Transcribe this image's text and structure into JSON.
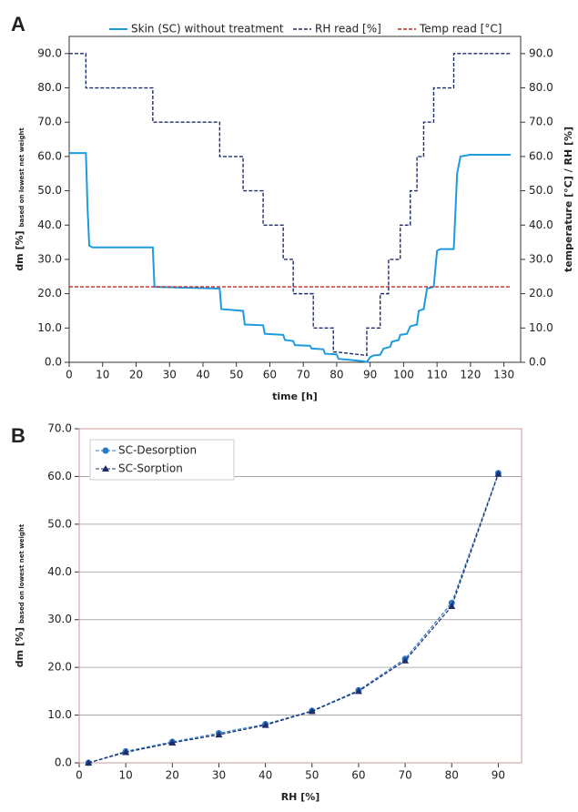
{
  "chart_data": [
    {
      "type": "line",
      "panel": "A",
      "x_label": "time [h]",
      "y_label": "dm [%]",
      "y_label_sub": "based on lowest net weight",
      "y2_label": "temperature [°C] / RH [%]",
      "xlim": [
        0,
        135
      ],
      "xticks": [
        0,
        10,
        20,
        30,
        40,
        50,
        60,
        70,
        80,
        90,
        100,
        110,
        120,
        130
      ],
      "ylim": [
        0,
        95
      ],
      "yticks": [
        {
          "value": 0,
          "label": "0.0"
        },
        {
          "value": 10,
          "label": "10.0"
        },
        {
          "value": 20,
          "label": "20.0"
        },
        {
          "value": 30,
          "label": "30.0"
        },
        {
          "value": 40,
          "label": "40.0"
        },
        {
          "value": 50,
          "label": "50.0"
        },
        {
          "value": 60,
          "label": "60.0"
        },
        {
          "value": 70,
          "label": "70.0"
        },
        {
          "value": 80,
          "label": "80.0"
        },
        {
          "value": 90,
          "label": "90.0"
        }
      ],
      "y2lim": [
        0,
        95
      ],
      "y2ticks": [
        {
          "value": 0,
          "label": "0.0"
        },
        {
          "value": 10,
          "label": "10.0"
        },
        {
          "value": 20,
          "label": "20.0"
        },
        {
          "value": 30,
          "label": "30.0"
        },
        {
          "value": 40,
          "label": "40.0"
        },
        {
          "value": 50,
          "label": "50.0"
        },
        {
          "value": 60,
          "label": "60.0"
        },
        {
          "value": 70,
          "label": "70.0"
        },
        {
          "value": 80,
          "label": "80.0"
        },
        {
          "value": 90,
          "label": "90.0"
        }
      ],
      "grid": false,
      "legend": "top",
      "series": [
        {
          "name": "Skin (SC) without treatment",
          "color": "#1e9be0",
          "dash": false,
          "width": 2,
          "x": [
            0,
            5,
            5.5,
            6,
            7,
            25,
            25.5,
            45,
            45.5,
            52,
            52.5,
            58,
            58.5,
            64,
            64.5,
            67,
            67.5,
            72,
            72.5,
            76,
            76.5,
            80,
            80.5,
            84,
            88,
            89,
            90,
            91,
            93,
            94,
            96,
            96.5,
            98.5,
            99,
            101,
            102,
            104,
            104.5,
            106,
            107,
            109,
            110,
            111,
            115,
            116,
            117,
            120,
            132
          ],
          "values": [
            61,
            61,
            45,
            34,
            33.5,
            33.5,
            22,
            21.5,
            15.5,
            15,
            11,
            10.8,
            8.3,
            8,
            6.5,
            6.2,
            5,
            4.8,
            4,
            3.8,
            2.5,
            2.3,
            1,
            0.7,
            0.3,
            0.1,
            1.5,
            2,
            2.2,
            4,
            4.5,
            6,
            6.5,
            8,
            8.3,
            10.5,
            11,
            15,
            15.5,
            21.5,
            22,
            32.5,
            33,
            33,
            55,
            60,
            60.5,
            60.5
          ]
        },
        {
          "name": "RH read [%]",
          "color": "#1f2d6b",
          "dash": true,
          "width": 1.4,
          "axis": "y2",
          "x": [
            0,
            5,
            5,
            25,
            25,
            45,
            45,
            52,
            52,
            58,
            58,
            64,
            64,
            67,
            67,
            73,
            73,
            79,
            79,
            80,
            89,
            89,
            93,
            93,
            95.5,
            95.5,
            99,
            99,
            102,
            102,
            104,
            104,
            106,
            106,
            109,
            109,
            115,
            115,
            132
          ],
          "values": [
            90,
            90,
            80,
            80,
            70,
            70,
            60,
            60,
            50,
            50,
            40,
            40,
            30,
            30,
            20,
            20,
            10,
            10,
            3,
            3,
            2,
            10,
            10,
            20,
            20,
            30,
            30,
            40,
            40,
            50,
            50,
            60,
            60,
            70,
            70,
            80,
            80,
            90,
            90
          ]
        },
        {
          "name": "Temp read [°C]",
          "color": "#c0281e",
          "dash": true,
          "width": 1.4,
          "axis": "y2",
          "x": [
            0,
            132
          ],
          "values": [
            22,
            22
          ]
        }
      ]
    },
    {
      "type": "line",
      "panel": "B",
      "x_label": "RH [%]",
      "y_label": "dm [%]",
      "y_label_sub": "based on lowest net weight",
      "xlim": [
        0,
        95
      ],
      "xticks": [
        0,
        10,
        20,
        30,
        40,
        50,
        60,
        70,
        80,
        90
      ],
      "ylim": [
        0,
        70
      ],
      "yticks": [
        {
          "value": 0,
          "label": "0.0"
        },
        {
          "value": 10,
          "label": "10.0"
        },
        {
          "value": 20,
          "label": "20.0"
        },
        {
          "value": 30,
          "label": "30.0"
        },
        {
          "value": 40,
          "label": "40.0"
        },
        {
          "value": 50,
          "label": "50.0"
        },
        {
          "value": 60,
          "label": "60.0"
        },
        {
          "value": 70,
          "label": "70.0"
        }
      ],
      "grid": true,
      "legend": "top-left",
      "series": [
        {
          "name": "SC-Desorption",
          "color": "#2a78c8",
          "dash": true,
          "width": 1.2,
          "marker": "circle",
          "x": [
            2,
            10,
            20,
            30,
            40,
            50,
            60,
            70,
            80,
            90
          ],
          "values": [
            0,
            2.4,
            4.4,
            6.2,
            8.1,
            10.9,
            15.2,
            21.8,
            33.5,
            60.7
          ]
        },
        {
          "name": "SC-Sorption",
          "color": "#1f2d6b",
          "dash": true,
          "width": 1.2,
          "marker": "triangle",
          "x": [
            2,
            10,
            20,
            30,
            40,
            50,
            60,
            70,
            80,
            90
          ],
          "values": [
            0,
            2.2,
            4.2,
            5.9,
            7.9,
            10.8,
            15.0,
            21.4,
            32.8,
            60.5
          ]
        }
      ]
    }
  ]
}
